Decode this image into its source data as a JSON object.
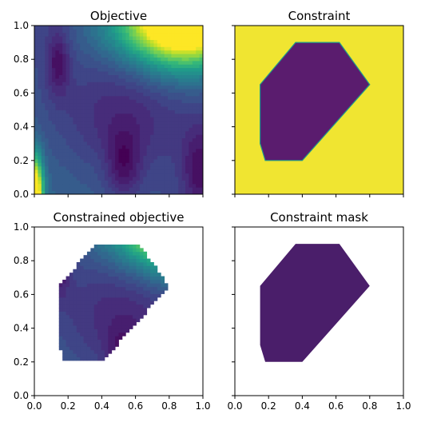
{
  "colors": {
    "viridis": [
      "#440154",
      "#482878",
      "#3e4989",
      "#31688e",
      "#26828e",
      "#1f9e89",
      "#35b779",
      "#6ece58",
      "#b5de2b",
      "#fde725"
    ],
    "constraint_inside": "#5a1c6e",
    "constraint_outside": "#f0e531",
    "mask_fill": "#4a1e6a"
  },
  "chart_data": [
    {
      "type": "heatmap",
      "title": "Objective",
      "xlabel": "",
      "ylabel": "",
      "xlim": [
        0,
        1
      ],
      "ylim": [
        0,
        1
      ],
      "xticks": [
        "",
        "",
        "",
        "",
        "",
        ""
      ],
      "yticks": [
        "0.0",
        "0.2",
        "0.4",
        "0.6",
        "0.8",
        "1.0"
      ],
      "field": "objective",
      "legend": "none",
      "grid": false
    },
    {
      "type": "heatmap",
      "title": "Constraint",
      "xlabel": "",
      "ylabel": "",
      "xlim": [
        0,
        1
      ],
      "ylim": [
        0,
        1
      ],
      "xticks": [
        "",
        "",
        "",
        "",
        "",
        ""
      ],
      "yticks": [
        "",
        "",
        "",
        "",
        "",
        ""
      ],
      "field": "constraint",
      "feasible_region": [
        [
          0.36,
          0.9
        ],
        [
          0.62,
          0.9
        ],
        [
          0.8,
          0.65
        ],
        [
          0.4,
          0.2
        ],
        [
          0.18,
          0.2
        ],
        [
          0.15,
          0.3
        ],
        [
          0.15,
          0.65
        ]
      ],
      "legend": "none",
      "grid": false
    },
    {
      "type": "heatmap",
      "title": "Constrained objective",
      "xlabel": "",
      "ylabel": "",
      "xlim": [
        0,
        1
      ],
      "ylim": [
        0,
        1
      ],
      "xticks": [
        "0.0",
        "0.2",
        "0.4",
        "0.6",
        "0.8",
        "1.0"
      ],
      "yticks": [
        "0.0",
        "0.2",
        "0.4",
        "0.6",
        "0.8",
        "1.0"
      ],
      "field": "objective",
      "clip_to_feasible": true,
      "legend": "none",
      "grid": false
    },
    {
      "type": "heatmap",
      "title": "Constraint mask",
      "xlabel": "",
      "ylabel": "",
      "xlim": [
        0,
        1
      ],
      "ylim": [
        0,
        1
      ],
      "xticks": [
        "0.0",
        "0.2",
        "0.4",
        "0.6",
        "0.8",
        "1.0"
      ],
      "yticks": [
        "",
        "",
        "",
        "",
        "",
        ""
      ],
      "field": "mask",
      "clip_to_feasible": true,
      "legend": "none",
      "grid": false
    }
  ]
}
